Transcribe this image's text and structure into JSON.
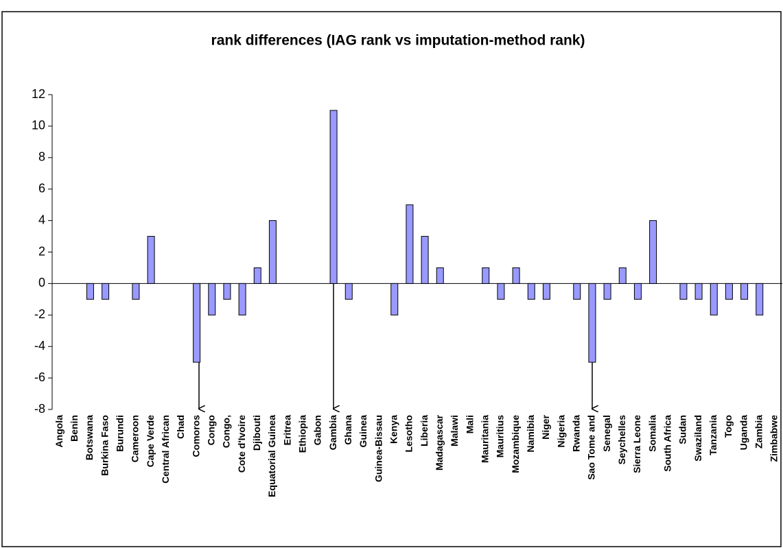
{
  "chart_data": {
    "type": "bar",
    "title": "rank differences (IAG rank vs imputation-method rank)",
    "categories": [
      "Angola",
      "Benin",
      "Botswana",
      "Burkina Faso",
      "Burundi",
      "Cameroon",
      "Cape Verde",
      "Central African",
      "Chad",
      "Comoros",
      "Congo",
      "Congo,",
      "Cote d'Ivoire",
      "Djibouti",
      "Equatorial Guinea",
      "Eritrea",
      "Ethiopia",
      "Gabon",
      "Gambia",
      "Ghana",
      "Guinea",
      "Guinea-Bissau",
      "Kenya",
      "Lesotho",
      "Liberia",
      "Madagascar",
      "Malawi",
      "Mali",
      "Mauritania",
      "Mauritius",
      "Mozambique",
      "Namibia",
      "Niger",
      "Nigeria",
      "Rwanda",
      "Sao Tome and",
      "Senegal",
      "Seychelles",
      "Sierra Leone",
      "Somalia",
      "South Africa",
      "Sudan",
      "Swaziland",
      "Tanzania",
      "Togo",
      "Uganda",
      "Zambia",
      "Zimbabwe"
    ],
    "values": [
      0,
      0,
      -1,
      -1,
      0,
      -1,
      3,
      0,
      0,
      -5,
      -2,
      -1,
      -2,
      1,
      4,
      0,
      0,
      0,
      11,
      -1,
      0,
      0,
      -2,
      5,
      3,
      1,
      0,
      0,
      1,
      -1,
      1,
      -1,
      -1,
      0,
      -1,
      -5,
      -1,
      1,
      -1,
      4,
      0,
      -1,
      -1,
      -2,
      -1,
      -1,
      -2,
      0
    ],
    "color": "#9999ff",
    "ylim": [
      -8,
      12
    ],
    "yticks": [
      -8,
      -6,
      -4,
      -2,
      0,
      2,
      4,
      6,
      8,
      10,
      12
    ],
    "grid": false
  }
}
